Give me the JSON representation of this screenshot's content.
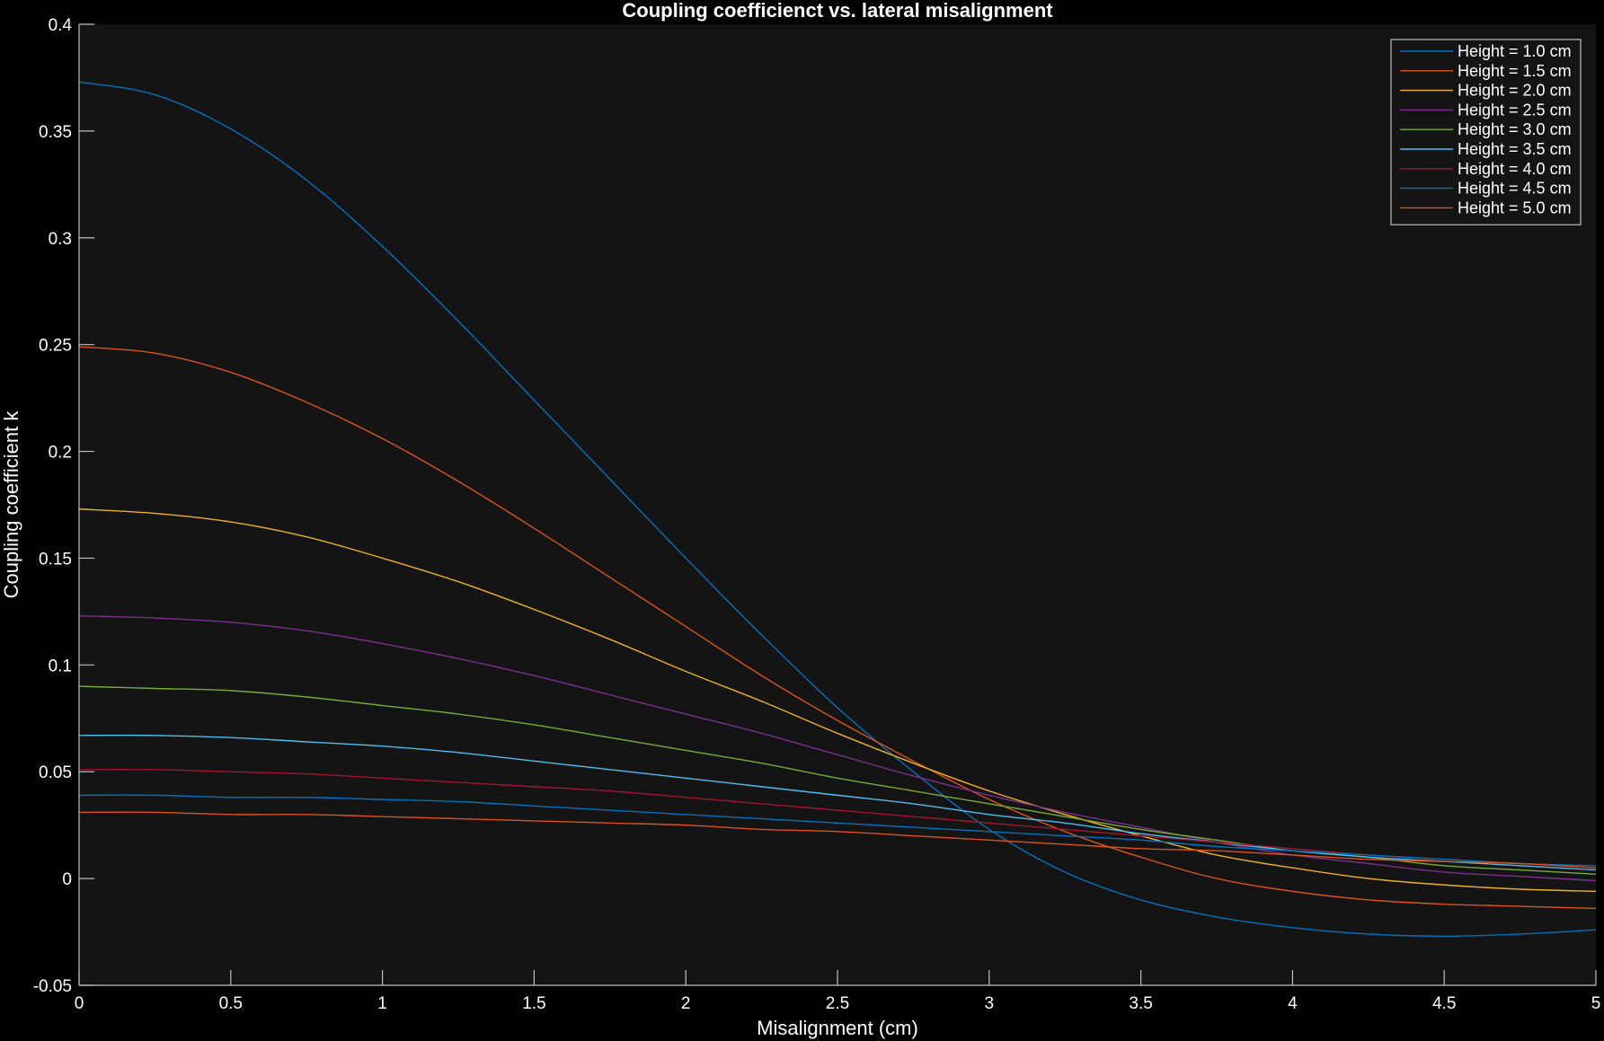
{
  "chart_data": {
    "type": "line",
    "title": "Coupling coefficienct vs. lateral misalignment",
    "xlabel": "Misalignment (cm)",
    "ylabel": "Coupling coefficient k",
    "xlim": [
      0,
      5
    ],
    "ylim": [
      -0.05,
      0.4
    ],
    "xticks": [
      0,
      0.5,
      1,
      1.5,
      2,
      2.5,
      3,
      3.5,
      4,
      4.5,
      5
    ],
    "xtick_labels": [
      "0",
      "0.5",
      "1",
      "1.5",
      "2",
      "2.5",
      "3",
      "3.5",
      "4",
      "4.5",
      "5"
    ],
    "yticks": [
      -0.05,
      0,
      0.05,
      0.1,
      0.15,
      0.2,
      0.25,
      0.3,
      0.35,
      0.4
    ],
    "ytick_labels": [
      "-0.05",
      "0",
      "0.05",
      "0.1",
      "0.15",
      "0.2",
      "0.25",
      "0.3",
      "0.35",
      "0.4"
    ],
    "grid": false,
    "legend_position": "top-right",
    "colors": {
      "figure_background": "#000000",
      "axes_background": "#141414",
      "axes_color": "#bfbfbf",
      "text_color": "#ffffff",
      "legend_background": "#141414",
      "legend_border": "#bfbfbf"
    },
    "x": [
      0,
      0.25,
      0.5,
      0.75,
      1.0,
      1.25,
      1.5,
      1.75,
      2.0,
      2.25,
      2.5,
      2.75,
      3.0,
      3.25,
      3.5,
      3.75,
      4.0,
      4.25,
      4.5,
      4.75,
      5.0
    ],
    "series": [
      {
        "name": "Height = 1.0 cm",
        "color": "#0072BD",
        "values": [
          0.373,
          0.367,
          0.351,
          0.327,
          0.296,
          0.261,
          0.224,
          0.187,
          0.15,
          0.114,
          0.08,
          0.05,
          0.023,
          0.003,
          -0.01,
          -0.018,
          -0.023,
          -0.026,
          -0.027,
          -0.026,
          -0.024
        ]
      },
      {
        "name": "Height = 1.5 cm",
        "color": "#D95319",
        "values": [
          0.249,
          0.246,
          0.237,
          0.223,
          0.206,
          0.186,
          0.164,
          0.141,
          0.118,
          0.095,
          0.074,
          0.055,
          0.037,
          0.022,
          0.01,
          0.0,
          -0.006,
          -0.01,
          -0.012,
          -0.013,
          -0.014
        ]
      },
      {
        "name": "Height = 2.0 cm",
        "color": "#EDB120",
        "values": [
          0.173,
          0.171,
          0.167,
          0.16,
          0.15,
          0.139,
          0.126,
          0.112,
          0.097,
          0.083,
          0.068,
          0.054,
          0.041,
          0.03,
          0.02,
          0.011,
          0.005,
          0.0,
          -0.003,
          -0.005,
          -0.006
        ]
      },
      {
        "name": "Height = 2.5 cm",
        "color": "#7E2F8E",
        "values": [
          0.123,
          0.122,
          0.12,
          0.116,
          0.11,
          0.103,
          0.095,
          0.086,
          0.077,
          0.068,
          0.058,
          0.048,
          0.039,
          0.031,
          0.024,
          0.017,
          0.011,
          0.007,
          0.003,
          0.001,
          -0.001
        ]
      },
      {
        "name": "Height = 3.0 cm",
        "color": "#77AC30",
        "values": [
          0.09,
          0.089,
          0.088,
          0.085,
          0.081,
          0.077,
          0.072,
          0.066,
          0.06,
          0.054,
          0.047,
          0.041,
          0.035,
          0.029,
          0.023,
          0.018,
          0.013,
          0.01,
          0.006,
          0.004,
          0.002
        ]
      },
      {
        "name": "Height = 3.5 cm",
        "color": "#4DBEEE",
        "values": [
          0.067,
          0.067,
          0.066,
          0.064,
          0.062,
          0.059,
          0.055,
          0.051,
          0.047,
          0.043,
          0.039,
          0.035,
          0.03,
          0.026,
          0.021,
          0.017,
          0.013,
          0.01,
          0.008,
          0.006,
          0.004
        ]
      },
      {
        "name": "Height = 4.0 cm",
        "color": "#A2142F",
        "values": [
          0.051,
          0.051,
          0.05,
          0.049,
          0.047,
          0.045,
          0.043,
          0.041,
          0.038,
          0.035,
          0.032,
          0.029,
          0.026,
          0.023,
          0.02,
          0.017,
          0.014,
          0.011,
          0.009,
          0.007,
          0.005
        ]
      },
      {
        "name": "Height = 4.5 cm",
        "color": "#0072BD",
        "values": [
          0.039,
          0.039,
          0.038,
          0.038,
          0.037,
          0.036,
          0.034,
          0.032,
          0.03,
          0.028,
          0.026,
          0.024,
          0.022,
          0.02,
          0.018,
          0.015,
          0.013,
          0.011,
          0.009,
          0.007,
          0.006
        ]
      },
      {
        "name": "Height = 5.0 cm",
        "color": "#D95319",
        "values": [
          0.031,
          0.031,
          0.03,
          0.03,
          0.029,
          0.028,
          0.027,
          0.026,
          0.025,
          0.023,
          0.022,
          0.02,
          0.018,
          0.016,
          0.014,
          0.013,
          0.011,
          0.009,
          0.008,
          0.007,
          0.005
        ]
      }
    ]
  }
}
